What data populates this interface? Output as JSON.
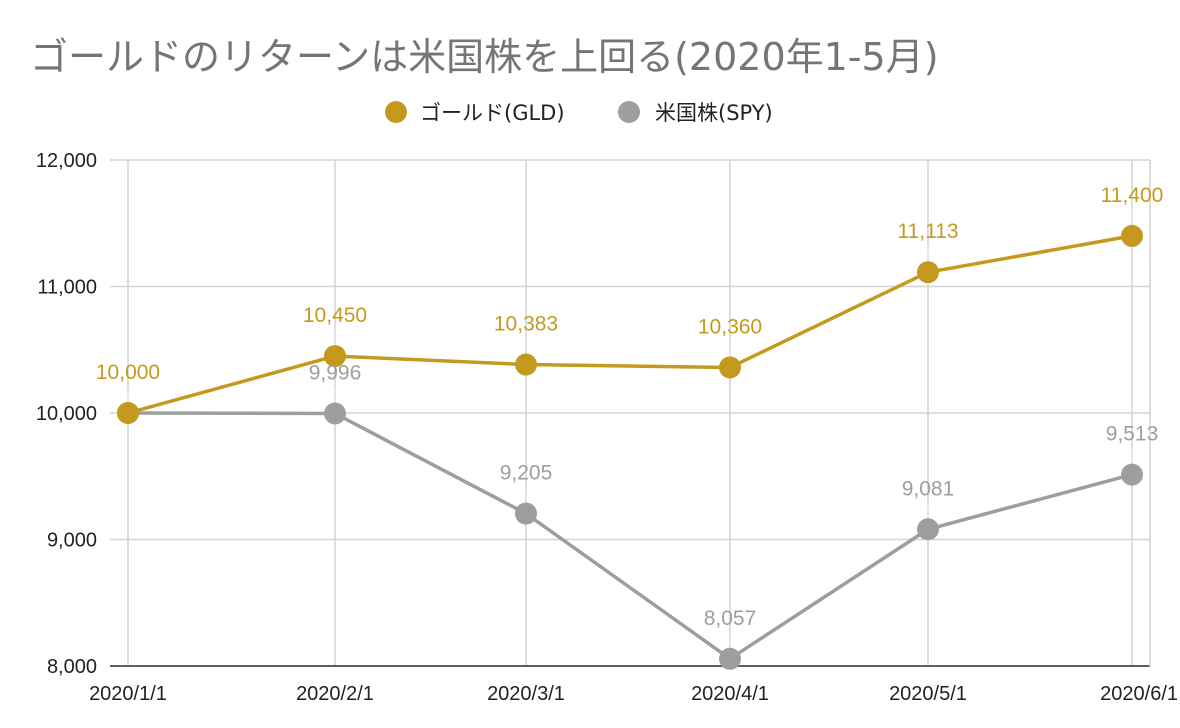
{
  "chart_data": {
    "type": "line",
    "title": "ゴールドのリターンは米国株を上回る(2020年1-5月)",
    "categories": [
      "2020/1/1",
      "2020/2/1",
      "2020/3/1",
      "2020/4/1",
      "2020/5/1",
      "2020/6/1"
    ],
    "x_dates": [
      "2020-01-01",
      "2020-02-01",
      "2020-03-01",
      "2020-04-01",
      "2020-05-01",
      "2020-06-01"
    ],
    "ylim": [
      8000,
      12000
    ],
    "y_ticks": [
      8000,
      9000,
      10000,
      11000,
      12000
    ],
    "y_tick_labels": [
      "8,000",
      "9,000",
      "10,000",
      "11,000",
      "12,000"
    ],
    "grid": true,
    "legend_position": "top",
    "series": [
      {
        "name": "ゴールド(GLD)",
        "color": "#C49A1E",
        "values": [
          10000,
          10450,
          10383,
          10360,
          11113,
          11400
        ],
        "labels": [
          "10,000",
          "10,450",
          "10,383",
          "10,360",
          "11,113",
          "11,400"
        ]
      },
      {
        "name": "米国株(SPY)",
        "color": "#9E9E9E",
        "values": [
          10000,
          9996,
          9205,
          8057,
          9081,
          9513
        ],
        "labels": [
          "",
          "9,996",
          "9,205",
          "8,057",
          "9,081",
          "9,513"
        ]
      }
    ]
  }
}
